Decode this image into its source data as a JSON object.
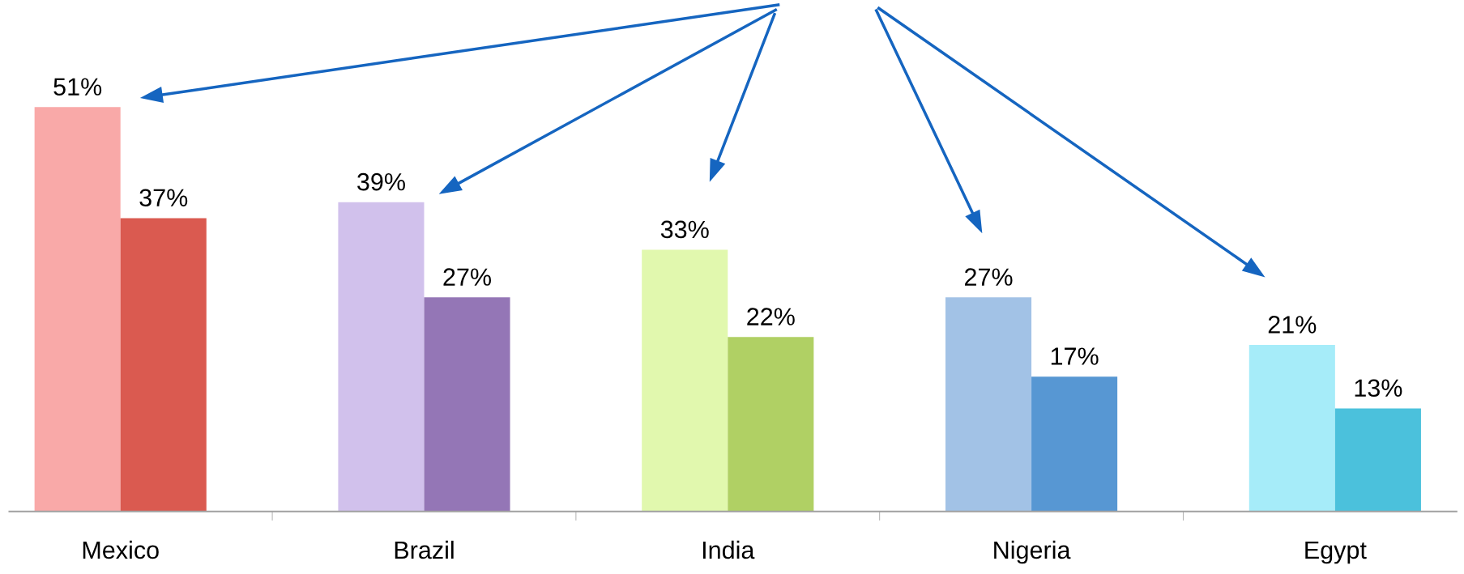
{
  "chart_data": {
    "type": "bar",
    "categories": [
      "Mexico",
      "Brazil",
      "India",
      "Nigeria",
      "Egypt"
    ],
    "series": [
      {
        "colors": [
          "#f9a9a8",
          "#d1c1ec",
          "#e1f8ae",
          "#a2c2e6",
          "#a6ecf9"
        ],
        "values": [
          51,
          39,
          33,
          27,
          21
        ],
        "value_labels": [
          "51%",
          "39%",
          "33%",
          "27%",
          "21%"
        ]
      },
      {
        "colors": [
          "#da5a50",
          "#9476b6",
          "#b0d064",
          "#5797d3",
          "#4bc1dc"
        ],
        "values": [
          37,
          27,
          22,
          17,
          13
        ],
        "value_labels": [
          "37%",
          "27%",
          "22%",
          "17%",
          "13%"
        ]
      }
    ],
    "grid": false,
    "legend": false
  }
}
